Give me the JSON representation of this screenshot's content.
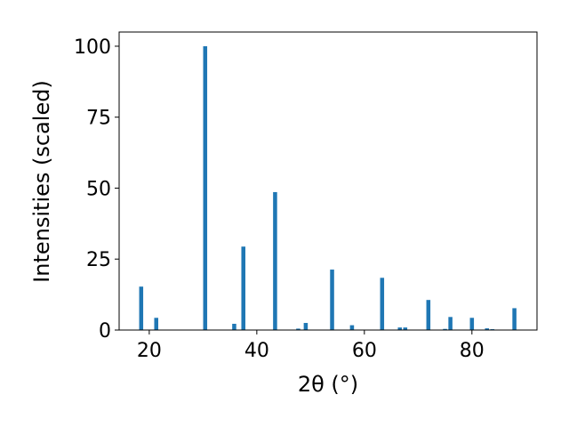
{
  "chart_data": {
    "type": "bar",
    "xlabel": "2θ (°)",
    "ylabel": "Intensities (scaled)",
    "x": [
      18.5,
      21.3,
      30.4,
      35.8,
      37.5,
      43.4,
      47.7,
      49.1,
      54.0,
      57.7,
      63.3,
      66.6,
      67.6,
      71.9,
      75.0,
      76.0,
      80.0,
      82.8,
      83.8,
      87.9
    ],
    "values": [
      15.3,
      4.3,
      100,
      2.2,
      29.4,
      48.6,
      0.5,
      2.5,
      21.3,
      1.7,
      18.4,
      0.9,
      0.9,
      10.6,
      0.4,
      4.6,
      4.3,
      0.6,
      0.3,
      7.7
    ],
    "color": "#1f77b4",
    "xlim": [
      14.4,
      92.1
    ],
    "xticks": [
      20,
      40,
      60,
      80
    ],
    "ylim": [
      0,
      105
    ],
    "yticks": [
      0,
      25,
      50,
      75,
      100
    ]
  }
}
